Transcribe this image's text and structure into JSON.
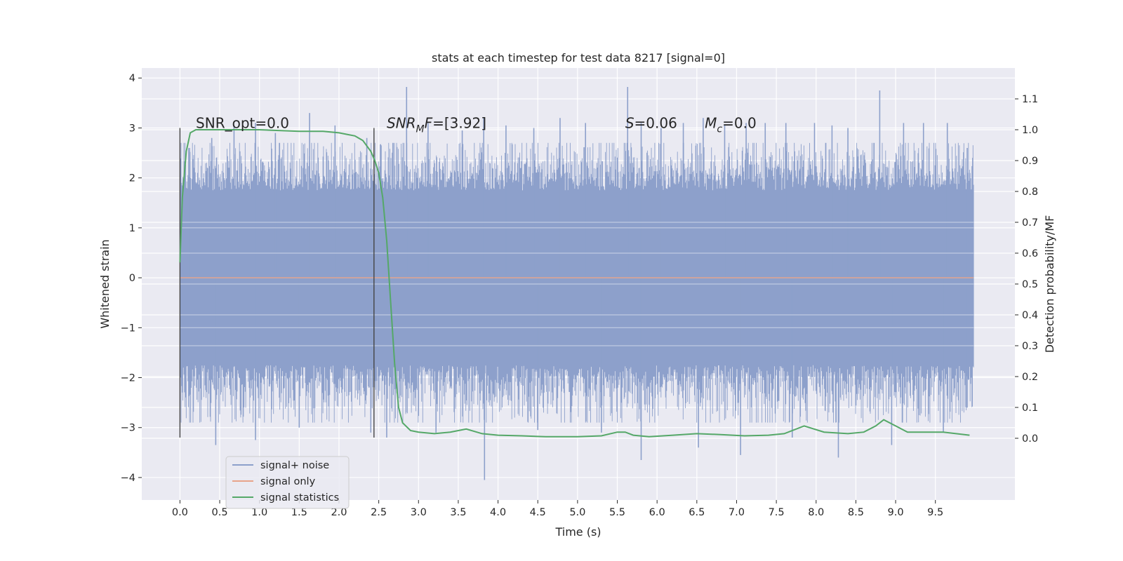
{
  "chart_data": {
    "type": "line",
    "title": "stats at each timestep for test data 8217 [signal=0]",
    "xlabel": "Time (s)",
    "ylabel": "Whitened strain",
    "ylabel_right": "Detection probability/MF",
    "xlim": [
      -0.48,
      10.5
    ],
    "ylim": [
      -4.45,
      4.2
    ],
    "ylim_right": [
      -0.2,
      1.2
    ],
    "x_ticks": [
      0.0,
      0.5,
      1.0,
      1.5,
      2.0,
      2.5,
      3.0,
      3.5,
      4.0,
      4.5,
      5.0,
      5.5,
      6.0,
      6.5,
      7.0,
      7.5,
      8.0,
      8.5,
      9.0,
      9.5
    ],
    "x_tick_labels": [
      "0.0",
      "0.5",
      "1.0",
      "1.5",
      "2.0",
      "2.5",
      "3.0",
      "3.5",
      "4.0",
      "4.5",
      "5.0",
      "5.5",
      "6.0",
      "6.5",
      "7.0",
      "7.5",
      "8.0",
      "8.5",
      "9.0",
      "9.5"
    ],
    "y_ticks": [
      -4,
      -3,
      -2,
      -1,
      0,
      1,
      2,
      3,
      4
    ],
    "y_tick_labels": [
      "−4",
      "−3",
      "−2",
      "−1",
      "0",
      "1",
      "2",
      "3",
      "4"
    ],
    "y_right_ticks": [
      0.0,
      0.1,
      0.2,
      0.3,
      0.4,
      0.5,
      0.6,
      0.7,
      0.8,
      0.9,
      1.0,
      1.1
    ],
    "y_right_tick_labels": [
      "0.0",
      "0.1",
      "0.2",
      "0.3",
      "0.4",
      "0.5",
      "0.6",
      "0.7",
      "0.8",
      "0.9",
      "1.0",
      "1.1"
    ],
    "grid": true,
    "legend_position": "lower-left",
    "series": [
      {
        "name": "signal+ noise",
        "axis": "left",
        "color": "#8da0cb",
        "note_kind": "noise",
        "x_range": [
          0.0,
          9.98
        ],
        "typical_range": [
          -1.7,
          1.7
        ],
        "peaks_x": [
          0.12,
          0.4,
          0.68,
          0.95,
          1.2,
          1.63,
          1.95,
          2.35,
          2.85,
          3.12,
          3.55,
          3.82,
          4.1,
          4.45,
          4.78,
          5.1,
          5.63,
          5.8,
          6.05,
          6.33,
          6.58,
          6.85,
          7.12,
          7.36,
          7.62,
          7.98,
          8.2,
          8.4,
          8.8,
          9.1,
          9.35,
          9.65,
          9.9
        ],
        "peaks_y": [
          2.6,
          2.8,
          3.05,
          3.1,
          2.9,
          3.3,
          3.05,
          2.8,
          3.82,
          3.1,
          2.95,
          3.2,
          3.05,
          3.0,
          3.2,
          3.1,
          3.82,
          3.1,
          3.0,
          3.1,
          3.2,
          3.05,
          3.1,
          3.1,
          3.1,
          3.1,
          3.05,
          3.0,
          3.75,
          3.1,
          3.1,
          3.1,
          2.6
        ],
        "troughs_x": [
          0.45,
          0.95,
          1.5,
          2.4,
          2.6,
          3.22,
          3.83,
          4.5,
          5.3,
          5.8,
          6.52,
          7.05,
          7.7,
          8.28,
          8.95,
          9.6,
          9.9
        ],
        "troughs_y": [
          -3.35,
          -3.25,
          -3.0,
          -3.1,
          -3.2,
          -3.1,
          -4.05,
          -3.05,
          -3.1,
          -3.65,
          -3.4,
          -3.55,
          -3.2,
          -3.6,
          -3.35,
          -3.1,
          -2.6
        ]
      },
      {
        "name": "signal only",
        "axis": "left",
        "color": "#e8a38a",
        "x": [
          0.0,
          9.98
        ],
        "y": [
          0.0,
          0.0
        ]
      },
      {
        "name": "signal statistics",
        "axis": "right",
        "color": "#55a868",
        "x": [
          0.0,
          0.03,
          0.08,
          0.13,
          0.2,
          0.35,
          0.5,
          1.0,
          1.5,
          1.8,
          2.0,
          2.1,
          2.2,
          2.3,
          2.4,
          2.45,
          2.5,
          2.55,
          2.6,
          2.65,
          2.7,
          2.75,
          2.8,
          2.9,
          3.0,
          3.2,
          3.4,
          3.6,
          3.8,
          4.0,
          4.3,
          4.6,
          5.0,
          5.3,
          5.5,
          5.6,
          5.7,
          5.9,
          6.2,
          6.5,
          6.8,
          7.1,
          7.4,
          7.6,
          7.85,
          8.1,
          8.4,
          8.6,
          8.75,
          8.85,
          9.0,
          9.15,
          9.3,
          9.6,
          9.93
        ],
        "y": [
          0.57,
          0.78,
          0.93,
          0.99,
          1.0,
          1.0,
          1.0,
          1.0,
          0.995,
          0.995,
          0.99,
          0.985,
          0.98,
          0.965,
          0.93,
          0.9,
          0.86,
          0.78,
          0.64,
          0.44,
          0.24,
          0.1,
          0.05,
          0.025,
          0.02,
          0.015,
          0.02,
          0.03,
          0.015,
          0.01,
          0.008,
          0.005,
          0.005,
          0.008,
          0.02,
          0.02,
          0.01,
          0.005,
          0.01,
          0.015,
          0.012,
          0.008,
          0.01,
          0.015,
          0.04,
          0.02,
          0.015,
          0.02,
          0.04,
          0.06,
          0.04,
          0.02,
          0.02,
          0.02,
          0.01
        ]
      }
    ],
    "vlines": [
      {
        "x": 0.0,
        "y0": -3.2,
        "y1": 3.0,
        "color": "#444444"
      },
      {
        "x": 2.44,
        "y0": -3.2,
        "y1": 3.0,
        "color": "#444444"
      }
    ],
    "annotations": [
      {
        "id": "snr-opt",
        "x": 0.2,
        "y": 3.0,
        "text": "SNR_opt=0.0"
      },
      {
        "id": "snr-mf",
        "x": 2.6,
        "y": 3.0,
        "base": "SNR",
        "sub": "M",
        "rest": "F=[3.92]",
        "italic_base": true
      },
      {
        "id": "s-val",
        "x": 5.6,
        "y": 3.0,
        "base": "S",
        "sub": "",
        "rest": "=0.06",
        "italic_base": true
      },
      {
        "id": "mc-val",
        "x": 6.6,
        "y": 3.0,
        "base": "M",
        "sub": "c",
        "rest": "=0.0",
        "italic_base": true
      }
    ],
    "legend": {
      "entries": [
        "signal+ noise",
        "signal only",
        "signal statistics"
      ]
    }
  }
}
